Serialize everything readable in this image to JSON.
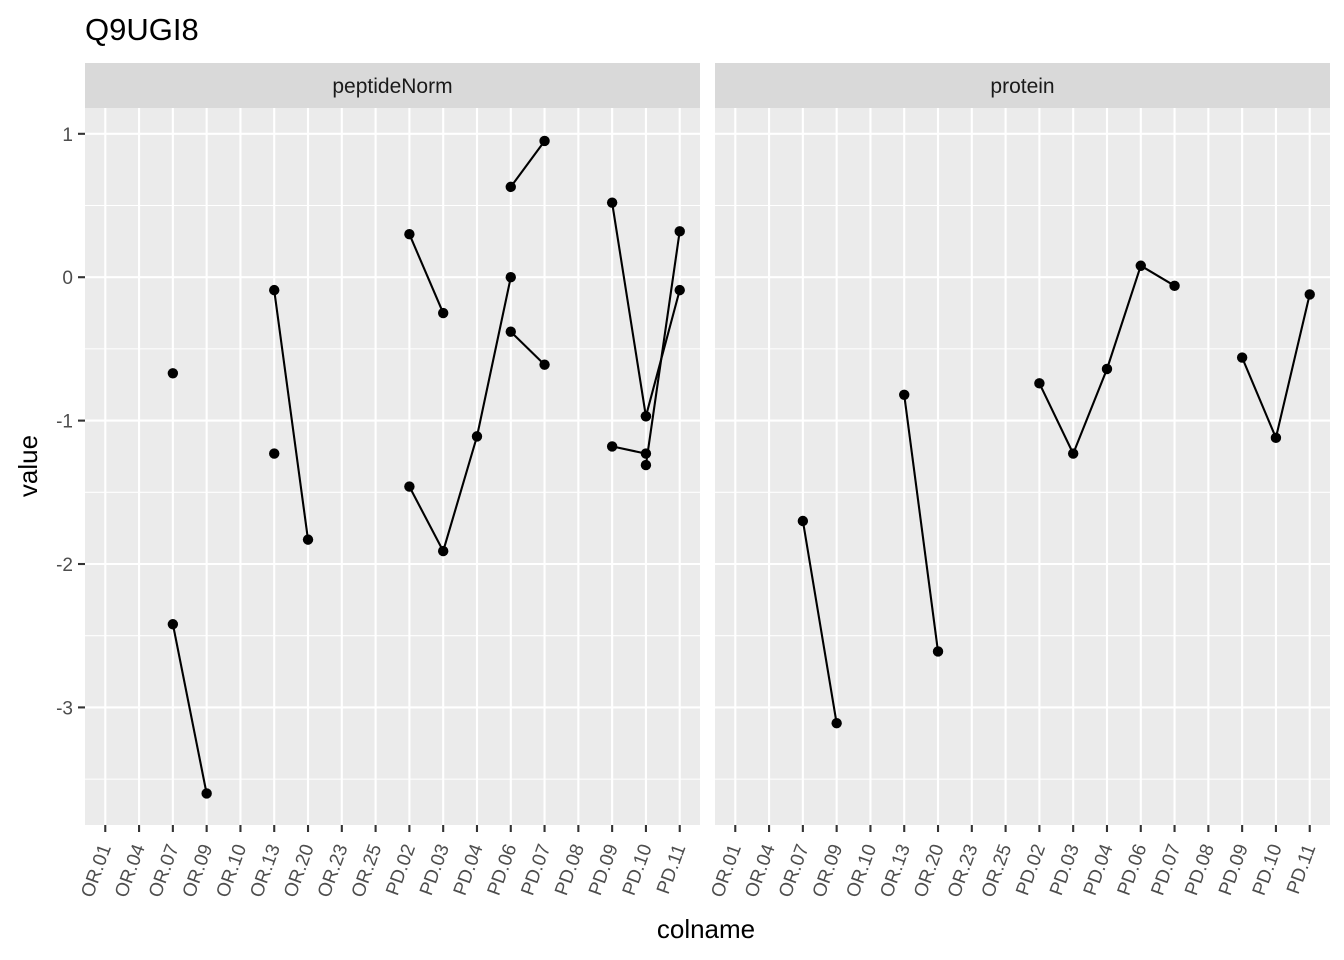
{
  "chart_data": {
    "type": "line",
    "title": "Q9UGI8",
    "xlabel": "colname",
    "ylabel": "value",
    "categories": [
      "OR.01",
      "OR.04",
      "OR.07",
      "OR.09",
      "OR.10",
      "OR.13",
      "OR.20",
      "OR.23",
      "OR.25",
      "PD.02",
      "PD.03",
      "PD.04",
      "PD.06",
      "PD.07",
      "PD.08",
      "PD.09",
      "PD.10",
      "PD.11"
    ],
    "y_ticks": [
      1,
      0,
      -1,
      -2,
      -3
    ],
    "y_tick_labels": [
      "1",
      "0",
      "-1",
      "-2",
      "-3"
    ],
    "ylim": [
      -3.82,
      1.18
    ],
    "grid": true,
    "legend": "none",
    "facets": [
      {
        "label": "peptideNorm",
        "lines": [
          {
            "x": [
              "OR.07",
              "OR.09"
            ],
            "y": [
              -2.42,
              -3.6
            ]
          },
          {
            "x": [
              "OR.13",
              "OR.20"
            ],
            "y": [
              -0.09,
              -1.83
            ]
          },
          {
            "x": [
              "PD.02",
              "PD.03"
            ],
            "y": [
              0.3,
              -0.25
            ]
          },
          {
            "x": [
              "PD.02",
              "PD.03",
              "PD.04",
              "PD.06"
            ],
            "y": [
              -1.46,
              -1.91,
              -1.11,
              0.0
            ]
          },
          {
            "x": [
              "PD.06",
              "PD.07"
            ],
            "y": [
              0.63,
              0.95
            ]
          },
          {
            "x": [
              "PD.06",
              "PD.07"
            ],
            "y": [
              -0.38,
              -0.61
            ]
          },
          {
            "x": [
              "PD.09",
              "PD.10"
            ],
            "y": [
              0.52,
              -0.97
            ]
          },
          {
            "x": [
              "PD.09",
              "PD.10"
            ],
            "y": [
              -1.18,
              -1.23
            ]
          },
          {
            "x": [
              "PD.10",
              "PD.11"
            ],
            "y": [
              -1.31,
              0.32
            ]
          },
          {
            "x": [
              "PD.10",
              "PD.11"
            ],
            "y": [
              -0.97,
              -0.09
            ]
          }
        ],
        "points": [
          {
            "x": "OR.07",
            "y": -0.67
          },
          {
            "x": "OR.13",
            "y": -1.23
          }
        ]
      },
      {
        "label": "protein",
        "lines": [
          {
            "x": [
              "OR.07",
              "OR.09"
            ],
            "y": [
              -1.7,
              -3.11
            ]
          },
          {
            "x": [
              "OR.13",
              "OR.20"
            ],
            "y": [
              -0.82,
              -2.61
            ]
          },
          {
            "x": [
              "PD.02",
              "PD.03",
              "PD.04",
              "PD.06",
              "PD.07"
            ],
            "y": [
              -0.74,
              -1.23,
              -0.64,
              0.08,
              -0.06
            ]
          },
          {
            "x": [
              "PD.09",
              "PD.10",
              "PD.11"
            ],
            "y": [
              -0.56,
              -1.12,
              -0.12
            ]
          }
        ],
        "points": []
      }
    ]
  }
}
